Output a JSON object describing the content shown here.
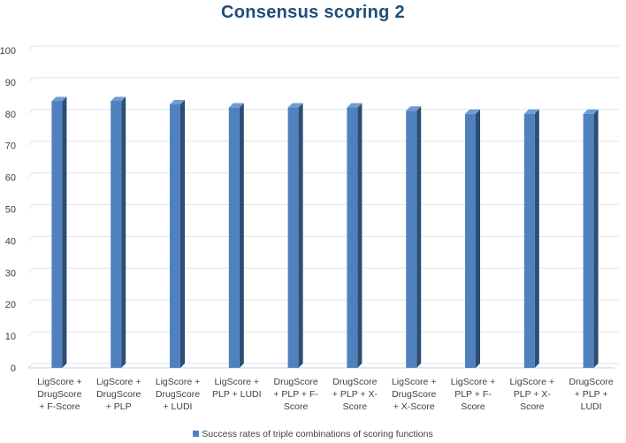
{
  "chart_data": {
    "type": "bar",
    "title": "Consensus scoring 2",
    "categories": [
      [
        "LigScore +",
        "DrugScore",
        "+ F-Score"
      ],
      [
        "LigScore +",
        "DrugScore",
        "+ PLP"
      ],
      [
        "LigScore +",
        "DrugScore",
        "+ LUDI"
      ],
      [
        "LigScore +",
        "PLP + LUDI"
      ],
      [
        "DrugScore",
        "+ PLP + F-",
        "Score"
      ],
      [
        "DrugScore",
        "+ PLP + X-",
        "Score"
      ],
      [
        "LigScore +",
        "DrugScore",
        "+ X-Score"
      ],
      [
        "LigScore +",
        "PLP + F-",
        "Score"
      ],
      [
        "LigScore +",
        "PLP + X-",
        "Score"
      ],
      [
        "DrugScore",
        "+ PLP +",
        "LUDI"
      ]
    ],
    "series": [
      {
        "name": "Success rates of triple combinations of scoring functions",
        "values": [
          84,
          84,
          83,
          82,
          82,
          82,
          81,
          80,
          80,
          80
        ]
      }
    ],
    "ylim": [
      0,
      100
    ],
    "yticks": [
      0,
      10,
      20,
      30,
      40,
      50,
      60,
      70,
      80,
      90,
      100
    ],
    "grid": true,
    "legend_position": "bottom",
    "colors": {
      "bar_front": "#4f81bd",
      "bar_side": "#2c4d75",
      "bar_top": "#6f9bd1",
      "grid": "#d9e6f2"
    }
  }
}
